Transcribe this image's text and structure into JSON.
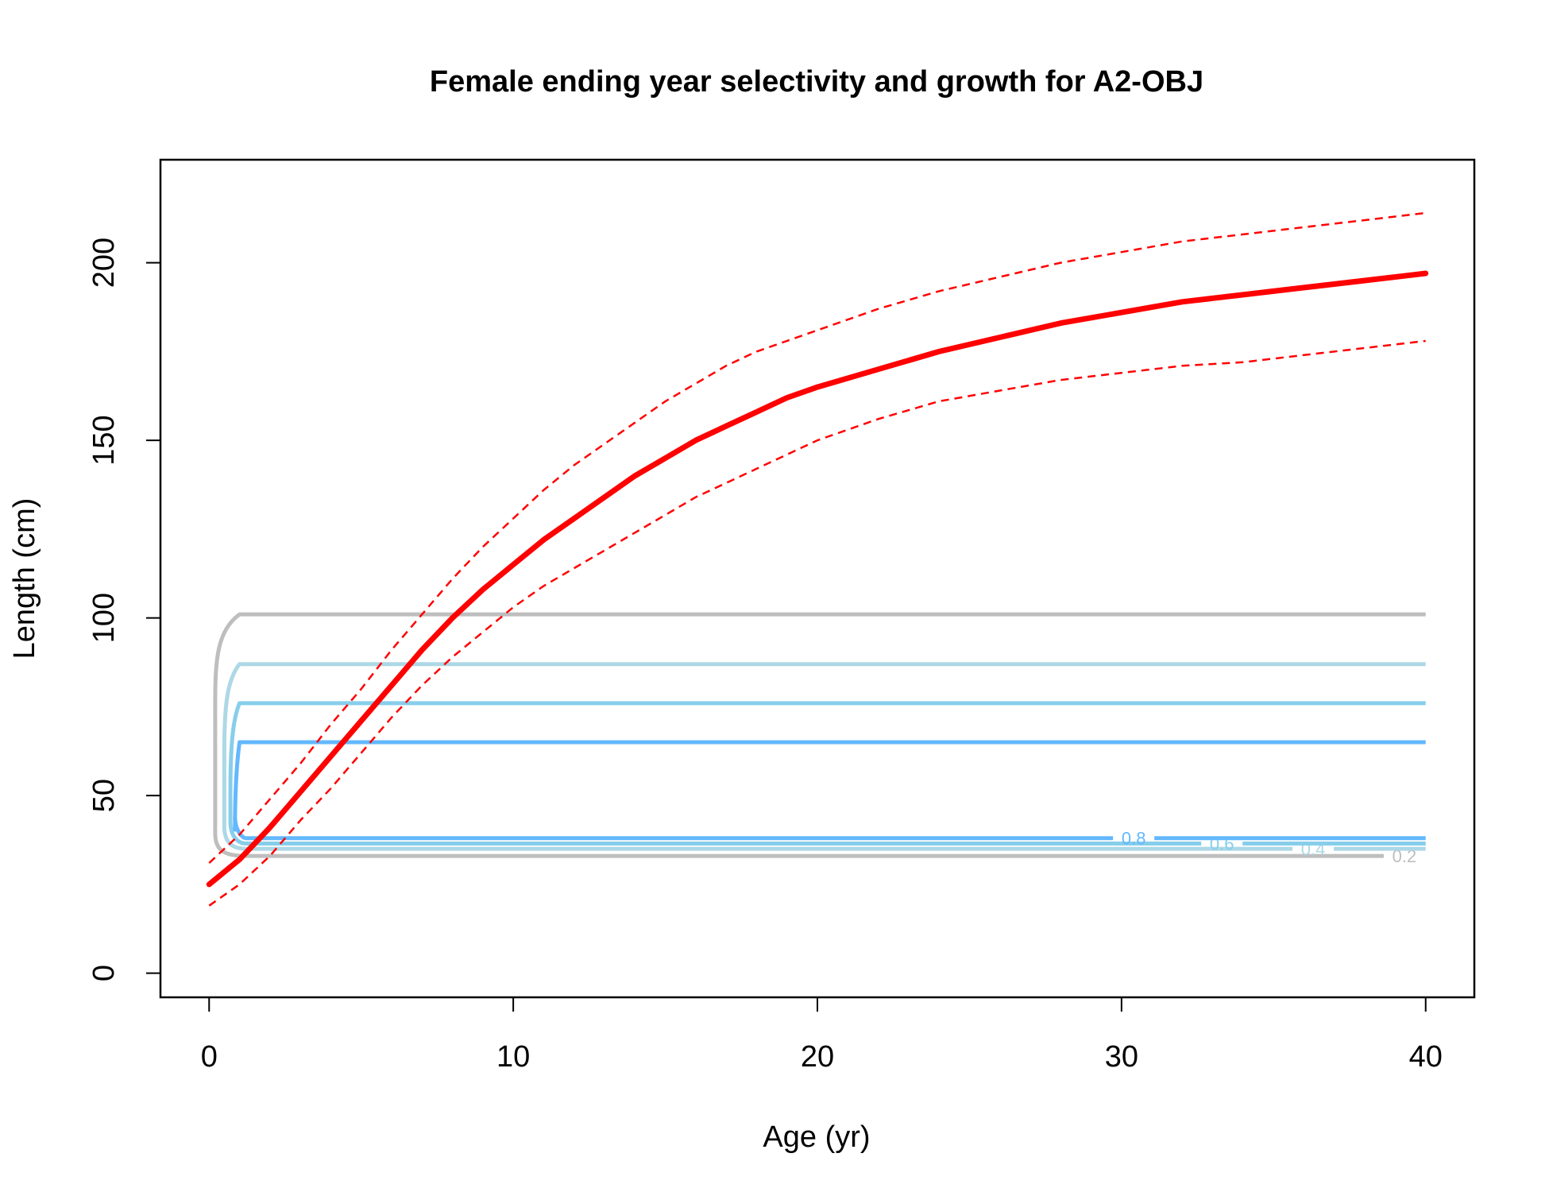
{
  "chart_data": {
    "type": "line",
    "title": "Female ending year selectivity and growth for A2-OBJ",
    "xlabel": "Age (yr)",
    "ylabel": "Length (cm)",
    "xlim": [
      -1.6,
      41.6
    ],
    "ylim": [
      -6.8,
      229
    ],
    "x_ticks": [
      0,
      10,
      20,
      30,
      40
    ],
    "y_ticks": [
      0,
      50,
      100,
      150,
      200
    ],
    "grid": false,
    "legend": "none",
    "growth": {
      "color": "#ff0000",
      "age": [
        0,
        1,
        2,
        3,
        4,
        5,
        6,
        7,
        8,
        9,
        10,
        11,
        12,
        13,
        14,
        15,
        16,
        17,
        18,
        19,
        20,
        22,
        24,
        26,
        28,
        30,
        32,
        34,
        36,
        38,
        40
      ],
      "mean": [
        25,
        32,
        41,
        51,
        61,
        71,
        81,
        91,
        100,
        108,
        115,
        122,
        128,
        134,
        140,
        145,
        150,
        154,
        158,
        162,
        165,
        170,
        175,
        179,
        183,
        186,
        189,
        191,
        193,
        195,
        197
      ],
      "upper": [
        31,
        39,
        49,
        59,
        70,
        80,
        91,
        101,
        111,
        120,
        128,
        136,
        143,
        149,
        155,
        161,
        166,
        171,
        175,
        178,
        181,
        187,
        192,
        196,
        200,
        203,
        206,
        208,
        210,
        212,
        214
      ],
      "lower": [
        19,
        25,
        33,
        43,
        52,
        62,
        72,
        81,
        89,
        96,
        103,
        109,
        114,
        119,
        124,
        129,
        134,
        138,
        142,
        146,
        150,
        156,
        161,
        164,
        167,
        169,
        171,
        172,
        174,
        176,
        178
      ]
    },
    "selectivity_contours": [
      {
        "level": "0.2",
        "color": "#bebebe",
        "top": 101,
        "bottom": 33,
        "curve_x": 0.2,
        "label_x": 39.3
      },
      {
        "level": "0.4",
        "color": "#add8e6",
        "top": 87,
        "bottom": 35,
        "curve_x": 0.5,
        "label_x": 36.3
      },
      {
        "level": "0.6",
        "color": "#87ceeb",
        "top": 76,
        "bottom": 36.5,
        "curve_x": 0.7,
        "label_x": 33.3
      },
      {
        "level": "0.8",
        "color": "#63b8ff",
        "top": 65,
        "bottom": 38,
        "curve_x": 0.85,
        "label_x": 30.4
      }
    ]
  }
}
